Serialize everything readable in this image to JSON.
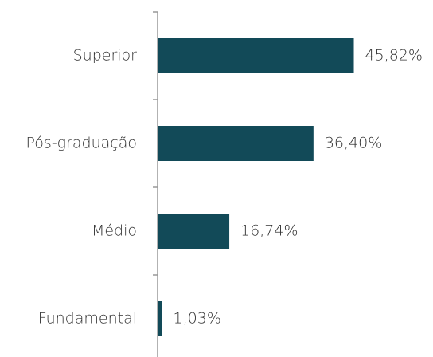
{
  "chart_data": {
    "type": "hbar",
    "categories": [
      "Superior",
      "Pós-graduação",
      "Médio",
      "Fundamental"
    ],
    "values": [
      45.82,
      36.4,
      16.74,
      1.03
    ],
    "value_labels": [
      "45,82%",
      "36,40%",
      "16,74%",
      "1,03%"
    ],
    "color": "#124a58",
    "xlim": [
      0,
      50
    ]
  }
}
